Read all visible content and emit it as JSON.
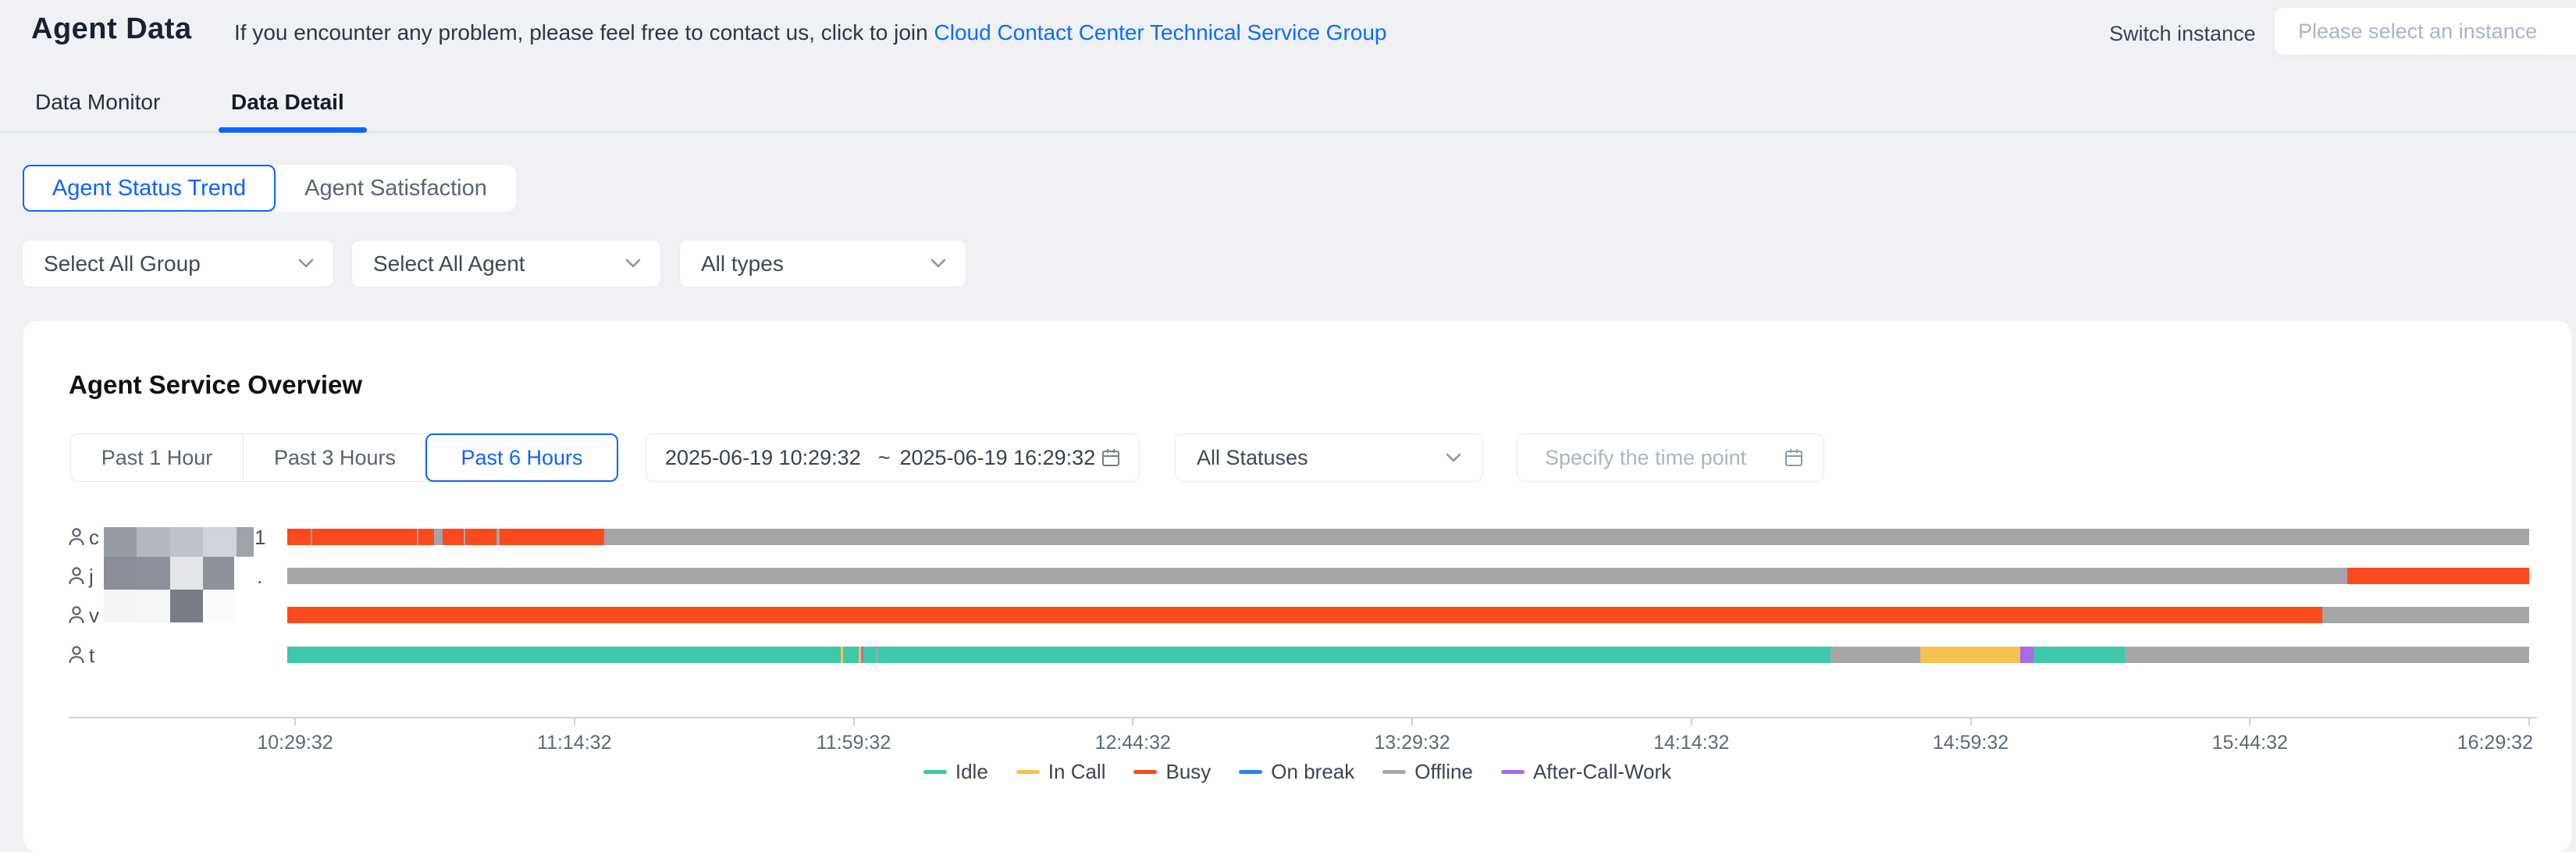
{
  "header": {
    "title": "Agent Data",
    "info_prefix": "If you encounter any problem, please feel free to contact us, click to join ",
    "info_link": "Cloud Contact Center Technical Service Group",
    "switch_label": "Switch instance",
    "instance_placeholder": "Please select an instance"
  },
  "tabs": [
    {
      "label": "Data Monitor",
      "active": false
    },
    {
      "label": "Data Detail",
      "active": true
    }
  ],
  "subtabs": [
    {
      "label": "Agent Status Trend",
      "active": true
    },
    {
      "label": "Agent Satisfaction",
      "active": false
    }
  ],
  "filters": [
    {
      "value": "Select All Group"
    },
    {
      "value": "Select All Agent"
    },
    {
      "value": "All types"
    }
  ],
  "card": {
    "title": "Agent Service Overview",
    "range_buttons": [
      {
        "label": "Past 1 Hour",
        "active": false
      },
      {
        "label": "Past 3 Hours",
        "active": false
      },
      {
        "label": "Past 6 Hours",
        "active": true
      }
    ],
    "date_range": {
      "start": "2025-06-19 10:29:32",
      "separator": "~",
      "end": "2025-06-19 16:29:32"
    },
    "status_filter": "All Statuses",
    "time_point_placeholder": "Specify the time point"
  },
  "chart_data": {
    "type": "gantt-timeline",
    "time_start": "2025-06-19 10:29:32",
    "time_end": "2025-06-19 16:29:32",
    "x_ticks": [
      "10:29:32",
      "11:14:32",
      "11:59:32",
      "12:44:32",
      "13:29:32",
      "14:14:32",
      "14:59:32",
      "15:44:32",
      "16:29:32"
    ],
    "status_colors": {
      "idle": "#3dc8a9",
      "incall": "#f6c14e",
      "busy": "#fb4a1d",
      "break": "#2e7dff",
      "offline": "#a6a6a8",
      "acw": "#a76ae8"
    },
    "legend": [
      {
        "label": "Idle",
        "status": "idle"
      },
      {
        "label": "In Call",
        "status": "incall"
      },
      {
        "label": "Busy",
        "status": "busy"
      },
      {
        "label": "On break",
        "status": "break"
      },
      {
        "label": "Offline",
        "status": "offline"
      },
      {
        "label": "After-Call-Work",
        "status": "acw"
      }
    ],
    "agents": [
      {
        "label_prefix": "c",
        "label_suffix": "1",
        "segments": [
          [
            "busy",
            30
          ],
          [
            "offline",
            2
          ],
          [
            "busy",
            134
          ],
          [
            "offline",
            2
          ],
          [
            "busy",
            20
          ],
          [
            "offline",
            11
          ],
          [
            "busy",
            27
          ],
          [
            "offline",
            2
          ],
          [
            "busy",
            40
          ],
          [
            "offline",
            4
          ],
          [
            "busy",
            134
          ],
          [
            "offline",
            2466
          ]
        ]
      },
      {
        "label_prefix": "j",
        "label_suffix": ".",
        "segments": [
          [
            "offline",
            2639
          ],
          [
            "busy",
            233
          ]
        ]
      },
      {
        "label_prefix": "v",
        "label_suffix": "",
        "segments": [
          [
            "busy",
            2607
          ],
          [
            "offline",
            265
          ]
        ]
      },
      {
        "label_prefix": "t",
        "label_suffix": "",
        "segments": [
          [
            "idle",
            709
          ],
          [
            "incall",
            3
          ],
          [
            "idle",
            20
          ],
          [
            "incall",
            3
          ],
          [
            "acw",
            3
          ],
          [
            "idle",
            16
          ],
          [
            "offline",
            2
          ],
          [
            "idle",
            1221
          ],
          [
            "offline",
            115
          ],
          [
            "incall",
            128
          ],
          [
            "acw",
            17
          ],
          [
            "idle",
            117
          ],
          [
            "offline",
            518
          ]
        ]
      }
    ],
    "mask_blocks": [
      {
        "y": 264,
        "h": 38,
        "blocks": [
          {
            "w": 42,
            "c": "#969aa3"
          },
          {
            "w": 43,
            "c": "#b5b8c0"
          },
          {
            "w": 42,
            "c": "#c0c2ca"
          },
          {
            "w": 43,
            "c": "#d1d3da"
          },
          {
            "w": 22,
            "c": "#a0a3ac"
          }
        ]
      },
      {
        "y": 302,
        "h": 42,
        "blocks": [
          {
            "w": 42,
            "c": "#8a8d97"
          },
          {
            "w": 43,
            "c": "#8d909a"
          },
          {
            "w": 42,
            "c": "#e4e5e9"
          },
          {
            "w": 40,
            "c": "#8f929b"
          }
        ]
      },
      {
        "y": 344,
        "h": 42,
        "blocks": [
          {
            "w": 42,
            "c": "#f3f4f6"
          },
          {
            "w": 43,
            "c": "#f6f7f9"
          },
          {
            "w": 42,
            "c": "#797c84"
          },
          {
            "w": 43,
            "c": "#fafbfc"
          }
        ]
      }
    ]
  }
}
